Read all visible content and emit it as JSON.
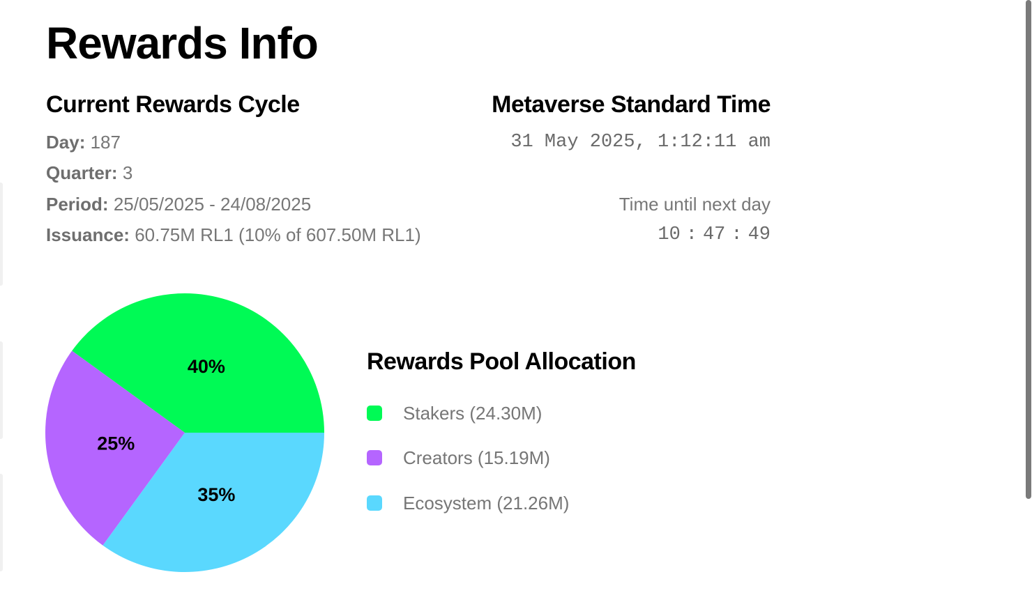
{
  "page": {
    "title": "Rewards Info"
  },
  "cycle": {
    "title": "Current Rewards Cycle",
    "day_label": "Day:",
    "day_value": "187",
    "quarter_label": "Quarter:",
    "quarter_value": "3",
    "period_label": "Period:",
    "period_value": "25/05/2025 - 24/08/2025",
    "issuance_label": "Issuance:",
    "issuance_value": "60.75M RL1 (10% of 607.50M RL1)"
  },
  "mst": {
    "title": "Metaverse Standard Time",
    "datetime": "31 May 2025, 1:12:11 am",
    "next_day_label": "Time until next day",
    "countdown": {
      "hours": "10",
      "minutes": "47",
      "seconds": "49",
      "separator": ":"
    }
  },
  "allocation": {
    "title": "Rewards Pool Allocation",
    "legend": [
      {
        "label": "Stakers (24.30M)",
        "color": "#00fa55"
      },
      {
        "label": "Creators (15.19M)",
        "color": "#b565ff"
      },
      {
        "label": "Ecosystem (21.26M)",
        "color": "#5ad8fe"
      }
    ]
  },
  "chart_data": {
    "type": "pie",
    "title": "Rewards Pool Allocation",
    "slices": [
      {
        "label": "Stakers",
        "value": 40,
        "display": "40%",
        "amount": "24.30M",
        "color": "#00fa55"
      },
      {
        "label": "Creators",
        "value": 25,
        "display": "25%",
        "amount": "15.19M",
        "color": "#b565ff"
      },
      {
        "label": "Ecosystem",
        "value": 35,
        "display": "35%",
        "amount": "21.26M",
        "color": "#5ad8fe"
      }
    ],
    "legend": "right"
  }
}
